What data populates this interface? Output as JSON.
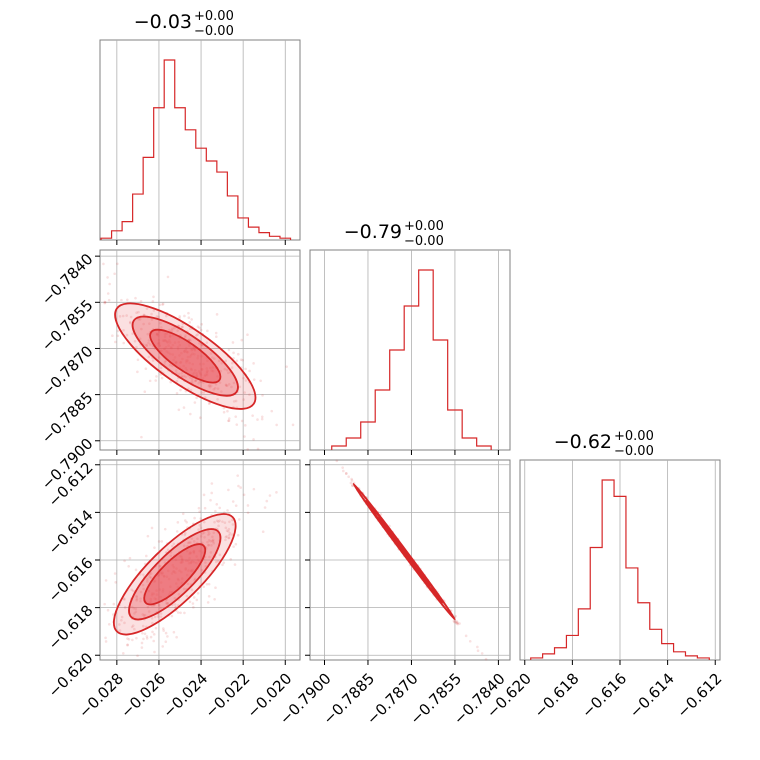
{
  "colors": {
    "series": "#d62728",
    "fill": "#e8545a",
    "grid": "#b0b0b0",
    "frame": "#808080"
  },
  "chart_data": [
    {
      "type": "histogram",
      "id": "hist-1",
      "title_main": "−0.03",
      "title_sup": "+0.00",
      "title_sub": "−0.00",
      "x": [
        -0.0285,
        -0.028,
        -0.0275,
        -0.027,
        -0.0265,
        -0.026,
        -0.0255,
        -0.025,
        -0.0245,
        -0.024,
        -0.0235,
        -0.023,
        -0.0225,
        -0.022,
        -0.0215,
        -0.021,
        -0.0205,
        -0.02
      ],
      "y": [
        0.01,
        0.05,
        0.1,
        0.25,
        0.45,
        0.72,
        0.98,
        0.72,
        0.6,
        0.5,
        0.43,
        0.37,
        0.24,
        0.12,
        0.07,
        0.04,
        0.02,
        0.01
      ],
      "xlim": [
        -0.0288,
        -0.0193
      ],
      "xticks": [
        -0.028,
        -0.026,
        -0.024,
        -0.022,
        -0.02
      ],
      "xtick_labels": [
        "−0.028",
        "−0.026",
        "−0.024",
        "−0.022",
        "−0.020"
      ]
    },
    {
      "type": "scatter-contour",
      "id": "scatter-2-1",
      "x_range": [
        -0.028,
        -0.0215
      ],
      "y_range": [
        -0.7857,
        -0.7888
      ],
      "correlation": "negative",
      "xlim": [
        -0.0288,
        -0.0193
      ],
      "ylim": [
        -0.7903,
        -0.7838
      ],
      "yticks": [
        -0.784,
        -0.7855,
        -0.787,
        -0.7885,
        -0.79
      ],
      "ytick_labels": [
        "−0.7840",
        "−0.7855",
        "−0.7870",
        "−0.7885",
        "−0.7900"
      ]
    },
    {
      "type": "histogram",
      "id": "hist-2",
      "title_main": "−0.79",
      "title_sup": "+0.00",
      "title_sub": "−0.00",
      "x": [
        -0.7895,
        -0.789,
        -0.7885,
        -0.788,
        -0.7875,
        -0.787,
        -0.7865,
        -0.786,
        -0.7855,
        -0.785,
        -0.7845
      ],
      "y": [
        0.02,
        0.06,
        0.14,
        0.3,
        0.5,
        0.72,
        0.9,
        0.55,
        0.2,
        0.06,
        0.02
      ],
      "xlim": [
        -0.7905,
        -0.7836
      ],
      "xticks": [
        -0.79,
        -0.7885,
        -0.787,
        -0.7855,
        -0.784
      ],
      "xtick_labels": [
        "−0.7900",
        "−0.7885",
        "−0.7870",
        "−0.7855",
        "−0.7840"
      ]
    },
    {
      "type": "scatter-contour",
      "id": "scatter-3-1",
      "x_range": [
        -0.028,
        -0.0225
      ],
      "y_range": [
        -0.619,
        -0.6142
      ],
      "correlation": "positive",
      "xlim": [
        -0.0288,
        -0.0193
      ],
      "ylim": [
        -0.6202,
        -0.6118
      ],
      "yticks": [
        -0.612,
        -0.614,
        -0.616,
        -0.618,
        -0.62
      ],
      "ytick_labels": [
        "−0.612",
        "−0.614",
        "−0.616",
        "−0.618",
        "−0.620"
      ]
    },
    {
      "type": "scatter-contour",
      "id": "scatter-3-2",
      "x_range": [
        -0.789,
        -0.7855
      ],
      "y_range": [
        -0.6128,
        -0.6185
      ],
      "correlation": "negative-linear",
      "xlim": [
        -0.7905,
        -0.7836
      ],
      "ylim": [
        -0.6202,
        -0.6118
      ]
    },
    {
      "type": "histogram",
      "id": "hist-3",
      "title_main": "−0.62",
      "title_sup": "+0.00",
      "title_sub": "−0.00",
      "x": [
        -0.6195,
        -0.619,
        -0.6185,
        -0.618,
        -0.6175,
        -0.617,
        -0.6165,
        -0.616,
        -0.6155,
        -0.615,
        -0.6145,
        -0.614,
        -0.6135,
        -0.613,
        -0.6125
      ],
      "y": [
        0.01,
        0.03,
        0.06,
        0.12,
        0.25,
        0.55,
        0.88,
        0.8,
        0.45,
        0.28,
        0.15,
        0.08,
        0.04,
        0.02,
        0.01
      ],
      "xlim": [
        -0.6202,
        -0.6118
      ],
      "xticks": [
        -0.62,
        -0.618,
        -0.616,
        -0.614,
        -0.612
      ],
      "xtick_labels": [
        "−0.620",
        "−0.618",
        "−0.616",
        "−0.614",
        "−0.612"
      ]
    }
  ]
}
